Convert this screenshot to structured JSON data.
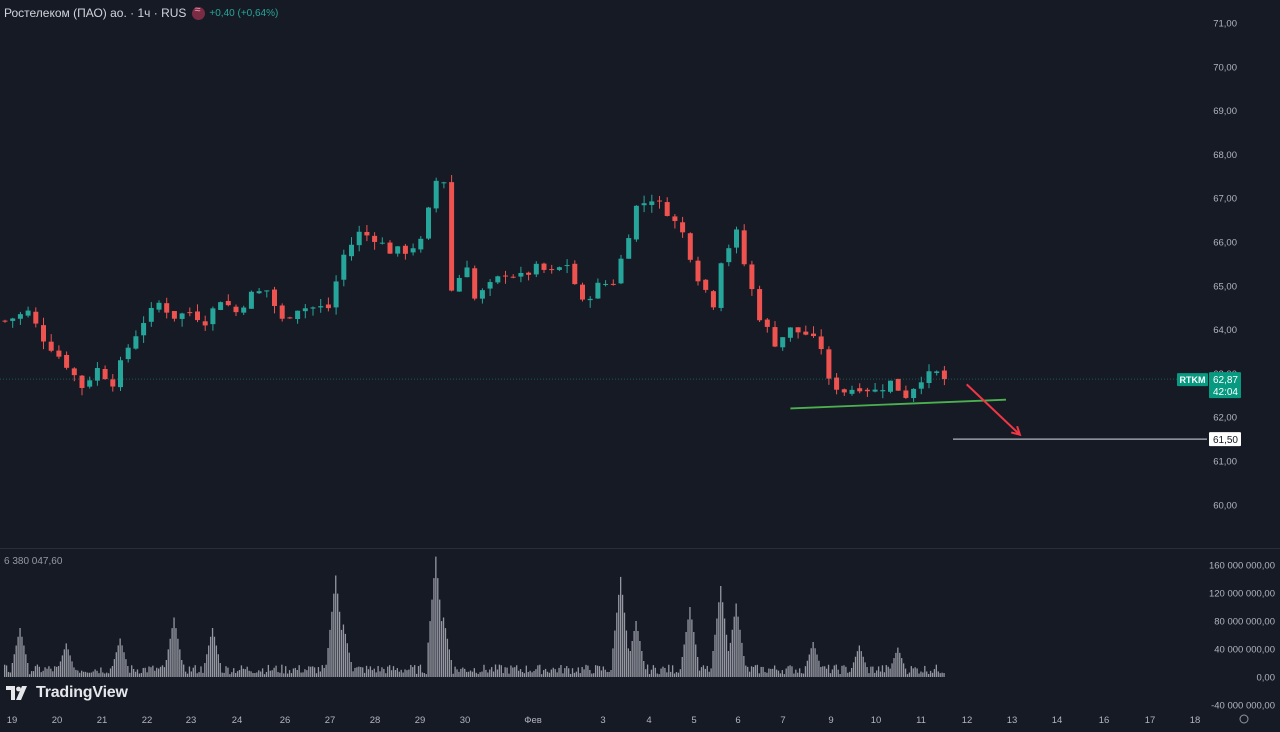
{
  "header": {
    "title": "Ростелеком (ПАО) ао. · 1ч · RUS",
    "change": "+0,40 (+0,64%)"
  },
  "price_tag": {
    "symbol": "RTKM",
    "price": "62,87",
    "countdown": "42:04"
  },
  "level_tag": "61,50",
  "volume_label": "6 380 047,60",
  "brand": "TradingView",
  "colors": {
    "background": "#161a25",
    "up": "#26a69a",
    "down": "#ef5350",
    "volume": "#9598a1",
    "support_line": "#4caf50",
    "arrow": "#f23645",
    "level_line": "#b2b5be"
  },
  "chart_data": [
    {
      "type": "candlestick",
      "title": "",
      "price_axis_ticks": [
        "71,00",
        "70,00",
        "69,00",
        "68,00",
        "67,00",
        "66,00",
        "65,00",
        "64,00",
        "63,00",
        "62,00",
        "61,00",
        "60,00"
      ],
      "ylim": [
        59.5,
        71.3
      ],
      "x_axis_ticks": [
        "19",
        "20",
        "21",
        "22",
        "23",
        "24",
        "26",
        "27",
        "28",
        "29",
        "30",
        "Фев",
        "3",
        "4",
        "5",
        "6",
        "7",
        "9",
        "10",
        "11",
        "12",
        "13",
        "14",
        "16",
        "17",
        "18"
      ],
      "close_path": [
        [
          0,
          64.2
        ],
        [
          3,
          64.4
        ],
        [
          5,
          63.8
        ],
        [
          8,
          63.2
        ],
        [
          10,
          62.7
        ],
        [
          12,
          63.1
        ],
        [
          14,
          62.8
        ],
        [
          16,
          63.6
        ],
        [
          18,
          64.2
        ],
        [
          20,
          64.6
        ],
        [
          22,
          64.3
        ],
        [
          24,
          64.4
        ],
        [
          26,
          64.2
        ],
        [
          28,
          64.7
        ],
        [
          30,
          64.4
        ],
        [
          32,
          64.8
        ],
        [
          34,
          64.9
        ],
        [
          36,
          64.2
        ],
        [
          38,
          64.5
        ],
        [
          40,
          64.5
        ],
        [
          42,
          64.5
        ],
        [
          44,
          65.7
        ],
        [
          46,
          66.2
        ],
        [
          48,
          66.1
        ],
        [
          50,
          65.8
        ],
        [
          52,
          65.8
        ],
        [
          54,
          66.0
        ],
        [
          56,
          67.4
        ],
        [
          57,
          67.4
        ],
        [
          58,
          64.9
        ],
        [
          60,
          65.5
        ],
        [
          61,
          64.7
        ],
        [
          63,
          65.0
        ],
        [
          65,
          65.3
        ],
        [
          67,
          65.2
        ],
        [
          69,
          65.4
        ],
        [
          71,
          65.3
        ],
        [
          73,
          65.5
        ],
        [
          75,
          64.6
        ],
        [
          77,
          65.0
        ],
        [
          79,
          65.1
        ],
        [
          80,
          65.6
        ],
        [
          82,
          66.8
        ],
        [
          84,
          67.0
        ],
        [
          86,
          66.7
        ],
        [
          88,
          66.2
        ],
        [
          90,
          65.2
        ],
        [
          92,
          64.6
        ],
        [
          93,
          65.6
        ],
        [
          95,
          66.2
        ],
        [
          96,
          65.5
        ],
        [
          98,
          64.3
        ],
        [
          100,
          63.7
        ],
        [
          102,
          64.0
        ],
        [
          104,
          63.9
        ],
        [
          106,
          63.6
        ],
        [
          107,
          62.8
        ],
        [
          109,
          62.6
        ],
        [
          111,
          62.7
        ],
        [
          113,
          62.6
        ],
        [
          115,
          62.8
        ],
        [
          117,
          62.5
        ],
        [
          119,
          62.9
        ],
        [
          121,
          63.0
        ],
        [
          122,
          62.87
        ]
      ],
      "volume_axis_ticks": [
        "160 000 000,00",
        "120 000 000,00",
        "80 000 000,00",
        "40 000 000,00",
        "0,00",
        "-40 000 000,00"
      ],
      "volume_ylim": [
        -40000000,
        160000000
      ],
      "volume_spikes_millions": [
        [
          2,
          70
        ],
        [
          8,
          48
        ],
        [
          15,
          55
        ],
        [
          22,
          85
        ],
        [
          27,
          70
        ],
        [
          43,
          145
        ],
        [
          44,
          75
        ],
        [
          56,
          172
        ],
        [
          57,
          85
        ],
        [
          80,
          143
        ],
        [
          82,
          80
        ],
        [
          89,
          100
        ],
        [
          93,
          130
        ],
        [
          95,
          105
        ],
        [
          105,
          50
        ],
        [
          111,
          45
        ],
        [
          116,
          42
        ]
      ],
      "last_price": 62.87,
      "annotations": {
        "support_line": {
          "from": [
            102,
            62.2
          ],
          "to": [
            130,
            62.4
          ]
        },
        "horizontal_level": 61.5,
        "down_arrow": {
          "from": [
            121,
            62.75
          ],
          "to": [
            127,
            61.6
          ]
        }
      }
    }
  ]
}
